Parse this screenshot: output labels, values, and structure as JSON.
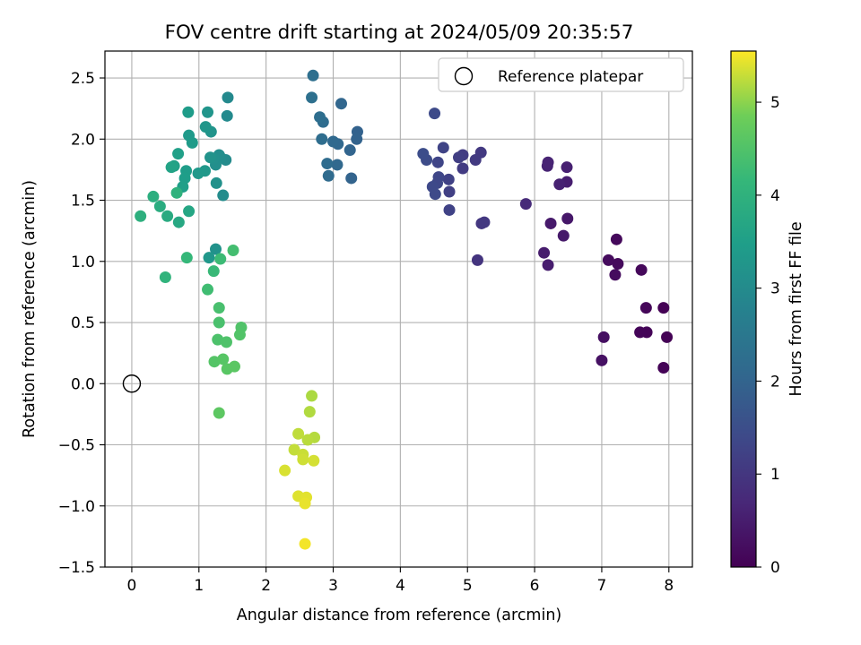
{
  "chart_data": {
    "type": "scatter",
    "title": "FOV centre drift starting at 2024/05/09 20:35:57",
    "xlabel": "Angular distance from reference (arcmin)",
    "ylabel": "Rotation from reference (arcmin)",
    "xlim": [
      -0.4,
      8.35
    ],
    "ylim": [
      -1.5,
      2.72
    ],
    "xticks": [
      0,
      1,
      2,
      3,
      4,
      5,
      6,
      7,
      8
    ],
    "yticks": [
      -1.5,
      -1.0,
      -0.5,
      0.0,
      0.5,
      1.0,
      1.5,
      2.0,
      2.5
    ],
    "xtick_labels": [
      "0",
      "1",
      "2",
      "3",
      "4",
      "5",
      "6",
      "7",
      "8"
    ],
    "ytick_labels": [
      "−1.5",
      "−1.0",
      "−0.5",
      "0.0",
      "0.5",
      "1.0",
      "1.5",
      "2.0",
      "2.5"
    ],
    "grid": true,
    "legend": {
      "placement": "top-right",
      "entries": [
        "Reference platepar"
      ]
    },
    "reference_point": {
      "x": 0,
      "y": 0
    },
    "colorbar": {
      "label": "Hours from first FF file",
      "range": [
        0,
        5.55
      ],
      "ticks": [
        0,
        1,
        2,
        3,
        4,
        5
      ],
      "tick_labels": [
        "0",
        "1",
        "2",
        "3",
        "4",
        "5"
      ],
      "colormap": "viridis"
    },
    "points": [
      {
        "x": 7.92,
        "y": 0.62,
        "h": 0.0
      },
      {
        "x": 7.97,
        "y": 0.38,
        "h": 0.02
      },
      {
        "x": 7.92,
        "y": 0.13,
        "h": 0.04
      },
      {
        "x": 7.67,
        "y": 0.42,
        "h": 0.06
      },
      {
        "x": 7.57,
        "y": 0.42,
        "h": 0.08
      },
      {
        "x": 7.66,
        "y": 0.62,
        "h": 0.1
      },
      {
        "x": 7.59,
        "y": 0.93,
        "h": 0.12
      },
      {
        "x": 7.22,
        "y": 1.18,
        "h": 0.14
      },
      {
        "x": 7.24,
        "y": 0.98,
        "h": 0.16
      },
      {
        "x": 7.1,
        "y": 1.01,
        "h": 0.18
      },
      {
        "x": 7.2,
        "y": 0.89,
        "h": 0.2
      },
      {
        "x": 7.03,
        "y": 0.38,
        "h": 0.25
      },
      {
        "x": 7.0,
        "y": 0.19,
        "h": 0.28
      },
      {
        "x": 6.49,
        "y": 1.35,
        "h": 0.4
      },
      {
        "x": 6.43,
        "y": 1.21,
        "h": 0.42
      },
      {
        "x": 6.24,
        "y": 1.31,
        "h": 0.45
      },
      {
        "x": 6.14,
        "y": 1.07,
        "h": 0.48
      },
      {
        "x": 6.2,
        "y": 0.97,
        "h": 0.5
      },
      {
        "x": 6.48,
        "y": 1.65,
        "h": 0.52
      },
      {
        "x": 6.48,
        "y": 1.77,
        "h": 0.55
      },
      {
        "x": 6.37,
        "y": 1.63,
        "h": 0.58
      },
      {
        "x": 6.19,
        "y": 1.78,
        "h": 0.6
      },
      {
        "x": 6.2,
        "y": 1.81,
        "h": 0.62
      },
      {
        "x": 5.87,
        "y": 1.47,
        "h": 0.75
      },
      {
        "x": 5.15,
        "y": 1.01,
        "h": 0.95
      },
      {
        "x": 5.21,
        "y": 1.31,
        "h": 1.0
      },
      {
        "x": 5.25,
        "y": 1.32,
        "h": 1.02
      },
      {
        "x": 5.2,
        "y": 1.89,
        "h": 1.05
      },
      {
        "x": 5.12,
        "y": 1.83,
        "h": 1.08
      },
      {
        "x": 4.93,
        "y": 1.76,
        "h": 1.1
      },
      {
        "x": 4.93,
        "y": 1.87,
        "h": 1.12
      },
      {
        "x": 4.87,
        "y": 1.85,
        "h": 1.15
      },
      {
        "x": 4.73,
        "y": 1.57,
        "h": 1.2
      },
      {
        "x": 4.72,
        "y": 1.67,
        "h": 1.22
      },
      {
        "x": 4.73,
        "y": 1.42,
        "h": 1.25
      },
      {
        "x": 4.64,
        "y": 1.93,
        "h": 1.28
      },
      {
        "x": 4.56,
        "y": 1.81,
        "h": 1.3
      },
      {
        "x": 4.57,
        "y": 1.69,
        "h": 1.33
      },
      {
        "x": 4.55,
        "y": 1.64,
        "h": 1.35
      },
      {
        "x": 4.48,
        "y": 1.61,
        "h": 1.38
      },
      {
        "x": 4.52,
        "y": 1.55,
        "h": 1.4
      },
      {
        "x": 4.51,
        "y": 2.21,
        "h": 1.42
      },
      {
        "x": 4.39,
        "y": 1.83,
        "h": 1.45
      },
      {
        "x": 4.34,
        "y": 1.88,
        "h": 1.47
      },
      {
        "x": 3.36,
        "y": 2.06,
        "h": 1.95
      },
      {
        "x": 3.35,
        "y": 2.0,
        "h": 1.97
      },
      {
        "x": 3.27,
        "y": 1.68,
        "h": 2.0
      },
      {
        "x": 3.25,
        "y": 1.91,
        "h": 2.02
      },
      {
        "x": 3.12,
        "y": 2.29,
        "h": 2.05
      },
      {
        "x": 3.07,
        "y": 1.96,
        "h": 2.08
      },
      {
        "x": 3.06,
        "y": 1.79,
        "h": 2.1
      },
      {
        "x": 3.0,
        "y": 1.98,
        "h": 2.12
      },
      {
        "x": 2.93,
        "y": 1.7,
        "h": 2.15
      },
      {
        "x": 2.91,
        "y": 1.8,
        "h": 2.18
      },
      {
        "x": 2.85,
        "y": 2.14,
        "h": 2.2
      },
      {
        "x": 2.83,
        "y": 2.0,
        "h": 2.22
      },
      {
        "x": 2.8,
        "y": 2.18,
        "h": 2.25
      },
      {
        "x": 2.7,
        "y": 2.52,
        "h": 2.28
      },
      {
        "x": 2.68,
        "y": 2.34,
        "h": 2.3
      },
      {
        "x": 1.43,
        "y": 2.34,
        "h": 2.95
      },
      {
        "x": 1.42,
        "y": 2.19,
        "h": 2.97
      },
      {
        "x": 1.4,
        "y": 1.83,
        "h": 3.0
      },
      {
        "x": 1.36,
        "y": 1.54,
        "h": 3.02
      },
      {
        "x": 1.32,
        "y": 1.85,
        "h": 3.05
      },
      {
        "x": 1.3,
        "y": 1.87,
        "h": 3.07
      },
      {
        "x": 1.25,
        "y": 1.79,
        "h": 3.1
      },
      {
        "x": 1.22,
        "y": 1.84,
        "h": 3.12
      },
      {
        "x": 1.26,
        "y": 1.64,
        "h": 3.15
      },
      {
        "x": 1.25,
        "y": 1.1,
        "h": 3.18
      },
      {
        "x": 1.17,
        "y": 1.85,
        "h": 3.2
      },
      {
        "x": 1.18,
        "y": 2.06,
        "h": 3.22
      },
      {
        "x": 1.13,
        "y": 2.22,
        "h": 3.25
      },
      {
        "x": 1.1,
        "y": 2.1,
        "h": 3.27
      },
      {
        "x": 1.15,
        "y": 1.03,
        "h": 3.3
      },
      {
        "x": 1.09,
        "y": 1.74,
        "h": 3.32
      },
      {
        "x": 0.99,
        "y": 1.72,
        "h": 3.35
      },
      {
        "x": 0.85,
        "y": 2.03,
        "h": 3.38
      },
      {
        "x": 0.9,
        "y": 1.97,
        "h": 3.4
      },
      {
        "x": 0.84,
        "y": 2.22,
        "h": 3.42
      },
      {
        "x": 0.81,
        "y": 1.74,
        "h": 3.45
      },
      {
        "x": 0.79,
        "y": 1.68,
        "h": 3.48
      },
      {
        "x": 0.76,
        "y": 1.61,
        "h": 3.5
      },
      {
        "x": 0.69,
        "y": 1.88,
        "h": 3.52
      },
      {
        "x": 0.63,
        "y": 1.78,
        "h": 3.55
      },
      {
        "x": 0.59,
        "y": 1.77,
        "h": 3.6
      },
      {
        "x": 0.85,
        "y": 1.41,
        "h": 3.7
      },
      {
        "x": 0.7,
        "y": 1.32,
        "h": 3.75
      },
      {
        "x": 0.53,
        "y": 1.37,
        "h": 3.8
      },
      {
        "x": 0.42,
        "y": 1.45,
        "h": 3.85
      },
      {
        "x": 0.32,
        "y": 1.53,
        "h": 3.9
      },
      {
        "x": 0.13,
        "y": 1.37,
        "h": 3.95
      },
      {
        "x": 0.67,
        "y": 1.56,
        "h": 4.0
      },
      {
        "x": 0.5,
        "y": 0.87,
        "h": 4.05
      },
      {
        "x": 0.82,
        "y": 1.03,
        "h": 4.15
      },
      {
        "x": 1.22,
        "y": 0.92,
        "h": 4.2
      },
      {
        "x": 1.32,
        "y": 1.02,
        "h": 4.25
      },
      {
        "x": 1.13,
        "y": 0.77,
        "h": 4.3
      },
      {
        "x": 1.51,
        "y": 1.09,
        "h": 4.35
      },
      {
        "x": 1.3,
        "y": 0.62,
        "h": 4.4
      },
      {
        "x": 1.3,
        "y": 0.5,
        "h": 4.42
      },
      {
        "x": 1.28,
        "y": 0.36,
        "h": 4.45
      },
      {
        "x": 1.41,
        "y": 0.34,
        "h": 4.48
      },
      {
        "x": 1.63,
        "y": 0.46,
        "h": 4.5
      },
      {
        "x": 1.61,
        "y": 0.4,
        "h": 4.52
      },
      {
        "x": 1.23,
        "y": 0.18,
        "h": 4.55
      },
      {
        "x": 1.36,
        "y": 0.2,
        "h": 4.58
      },
      {
        "x": 1.42,
        "y": 0.12,
        "h": 4.6
      },
      {
        "x": 1.53,
        "y": 0.14,
        "h": 4.62
      },
      {
        "x": 1.3,
        "y": -0.24,
        "h": 4.65
      },
      {
        "x": 2.68,
        "y": -0.1,
        "h": 5.15
      },
      {
        "x": 2.65,
        "y": -0.23,
        "h": 5.18
      },
      {
        "x": 2.72,
        "y": -0.44,
        "h": 5.2
      },
      {
        "x": 2.62,
        "y": -0.46,
        "h": 5.22
      },
      {
        "x": 2.48,
        "y": -0.41,
        "h": 5.25
      },
      {
        "x": 2.42,
        "y": -0.54,
        "h": 5.27
      },
      {
        "x": 2.55,
        "y": -0.58,
        "h": 5.3
      },
      {
        "x": 2.55,
        "y": -0.62,
        "h": 5.32
      },
      {
        "x": 2.71,
        "y": -0.63,
        "h": 5.35
      },
      {
        "x": 2.28,
        "y": -0.71,
        "h": 5.37
      },
      {
        "x": 2.48,
        "y": -0.92,
        "h": 5.4
      },
      {
        "x": 2.6,
        "y": -0.93,
        "h": 5.42
      },
      {
        "x": 2.58,
        "y": -0.98,
        "h": 5.45
      },
      {
        "x": 2.58,
        "y": -1.31,
        "h": 5.5
      }
    ]
  }
}
